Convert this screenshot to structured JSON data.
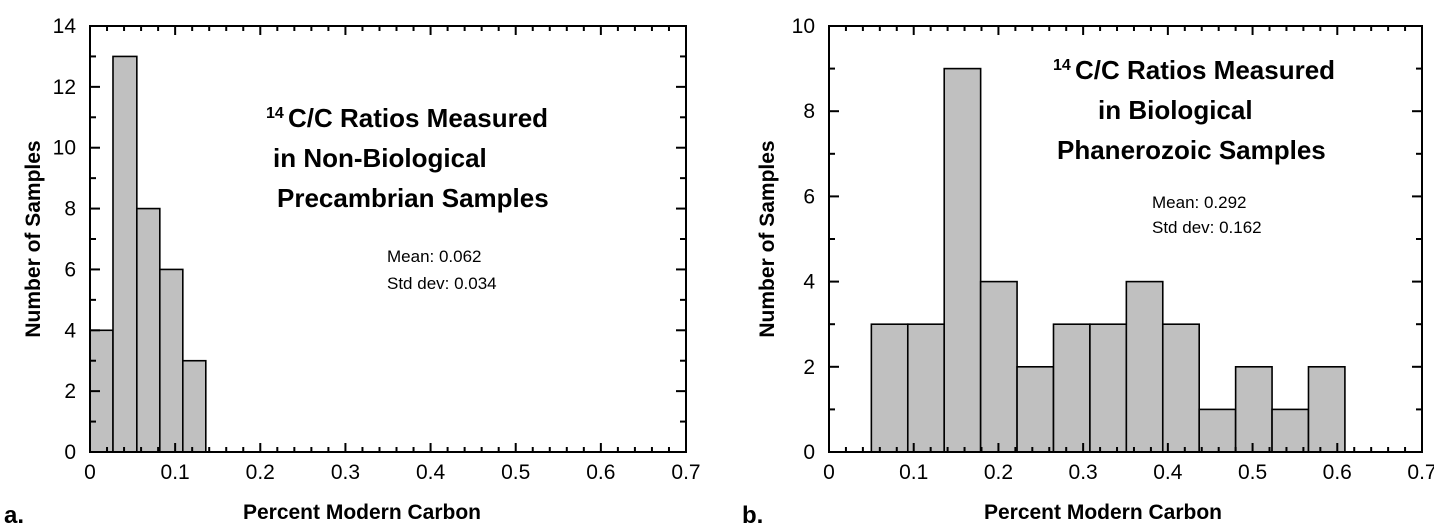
{
  "chart_data": [
    {
      "type": "bar",
      "panel_label": "a.",
      "title_sup": "14",
      "title_lines": [
        "C/C Ratios Measured",
        "in Non-Biological",
        "Precambrian Samples"
      ],
      "xlabel": "Percent Modern Carbon",
      "ylabel": "Number of Samples",
      "xlim": [
        0,
        0.7
      ],
      "ylim": [
        0,
        14
      ],
      "xticks": [
        "0",
        "0.1",
        "0.2",
        "0.3",
        "0.4",
        "0.5",
        "0.6",
        "0.7"
      ],
      "yticks": [
        "0",
        "2",
        "4",
        "6",
        "8",
        "10",
        "12",
        "14"
      ],
      "bins": [
        {
          "x0": 0.0,
          "x1": 0.027,
          "value": 4
        },
        {
          "x0": 0.027,
          "x1": 0.055,
          "value": 13
        },
        {
          "x0": 0.055,
          "x1": 0.082,
          "value": 8
        },
        {
          "x0": 0.082,
          "x1": 0.109,
          "value": 6
        },
        {
          "x0": 0.109,
          "x1": 0.136,
          "value": 3
        }
      ],
      "stats": [
        "Mean: 0.062",
        "Std dev: 0.034"
      ]
    },
    {
      "type": "bar",
      "panel_label": "b.",
      "title_sup": "14",
      "title_lines": [
        "C/C Ratios Measured",
        "in Biological",
        "Phanerozoic Samples"
      ],
      "xlabel": "Percent Modern Carbon",
      "ylabel": "Number of Samples",
      "xlim": [
        0,
        0.7
      ],
      "ylim": [
        0,
        10
      ],
      "xticks": [
        "0",
        "0.1",
        "0.2",
        "0.3",
        "0.4",
        "0.5",
        "0.6",
        "0.7"
      ],
      "yticks": [
        "0",
        "2",
        "4",
        "6",
        "8",
        "10"
      ],
      "bins": [
        {
          "x0": 0.05,
          "x1": 0.093,
          "value": 3
        },
        {
          "x0": 0.093,
          "x1": 0.136,
          "value": 3
        },
        {
          "x0": 0.136,
          "x1": 0.179,
          "value": 9
        },
        {
          "x0": 0.179,
          "x1": 0.222,
          "value": 4
        },
        {
          "x0": 0.222,
          "x1": 0.265,
          "value": 2
        },
        {
          "x0": 0.265,
          "x1": 0.308,
          "value": 3
        },
        {
          "x0": 0.308,
          "x1": 0.351,
          "value": 3
        },
        {
          "x0": 0.351,
          "x1": 0.394,
          "value": 4
        },
        {
          "x0": 0.394,
          "x1": 0.437,
          "value": 3
        },
        {
          "x0": 0.437,
          "x1": 0.48,
          "value": 1
        },
        {
          "x0": 0.48,
          "x1": 0.523,
          "value": 2
        },
        {
          "x0": 0.523,
          "x1": 0.566,
          "value": 1
        },
        {
          "x0": 0.566,
          "x1": 0.609,
          "value": 2
        }
      ],
      "stats": [
        "Mean: 0.292",
        "Std dev: 0.162"
      ]
    }
  ]
}
